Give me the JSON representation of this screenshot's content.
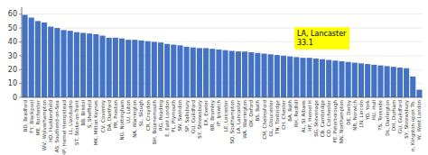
{
  "chart_data": {
    "type": "bar",
    "categories": [
      "BD, Bradford",
      "FY, Blackpool",
      "ME, Rochester",
      "WV, Wolverhampton",
      "HD, Huddersfield",
      "AS, Southend-on-Sea",
      "HP, Hemel Hempstead",
      "LL, Llandudno",
      "ST, Stoke-on-Trent",
      "BB, Bristol",
      "S, Sheffield",
      "MK, Milton Keynes",
      "CV, Coventry",
      "DA, Dartford",
      "PR, Preston",
      "NG, Nottingham",
      "LU, Luton",
      "NA, Warrington",
      "SL, Slough",
      "CR, Croydon",
      "BH, Bournemouth",
      "RG, Reading",
      "E, East London",
      "PL, Plymouth",
      "SN, Swindon",
      "SP, Salisbury",
      "GU, Guildford",
      "SY, Shrewsbury",
      "EX, Exeter",
      "BR, Bromley",
      "IP, Ipswich",
      "LE, Leicester",
      "SO, Southampton",
      "LA, Lancaster",
      "WA, Warrington",
      "OX, Oxford",
      "BS, Bath",
      "CM, Chelmsford",
      "GL, Gloucester",
      "TN, Tonbridge",
      "CH, Chester",
      "BA, Bath",
      "RH, Redhill",
      "AL, St Albans",
      "HP, Hemel H",
      "SG, Stevenage",
      "CB, Cambridge",
      "CO, Colchester",
      "PE, Peterborough",
      "NN, Northampton",
      "DE, Derby",
      "NR, Norwich",
      "LN, Lincoln",
      "YO, York",
      "HU, Hull",
      "TS, Teesside",
      "DL, Darlington",
      "DH, Durham",
      "GU, Guildford",
      "SY, Shrewsbury",
      "n, Kingston upon Th.",
      "W, West London"
    ],
    "values": [
      59.5,
      57.5,
      55.0,
      54.0,
      51.0,
      50.0,
      48.5,
      48.0,
      47.0,
      46.5,
      46.0,
      45.5,
      44.5,
      43.0,
      43.0,
      42.5,
      41.5,
      41.5,
      41.0,
      40.5,
      40.0,
      39.5,
      38.5,
      38.0,
      37.5,
      36.5,
      36.0,
      35.5,
      35.5,
      35.0,
      34.5,
      34.0,
      33.5,
      33.1,
      33.0,
      32.5,
      32.0,
      31.5,
      31.0,
      30.5,
      30.0,
      29.5,
      29.0,
      28.5,
      28.5,
      28.0,
      27.5,
      27.0,
      26.5,
      26.0,
      25.5,
      25.0,
      24.5,
      24.0,
      23.5,
      23.0,
      22.5,
      22.0,
      21.5,
      21.0,
      15.0,
      5.5
    ],
    "color": "#4472C4",
    "ylim": [
      0,
      65
    ],
    "yticks": [
      0,
      10,
      20,
      30,
      40,
      50,
      60
    ],
    "grid": true,
    "annotations": [
      {
        "text": "LA, Lancaster\n33.1",
        "color": "#FFFF00"
      }
    ]
  }
}
